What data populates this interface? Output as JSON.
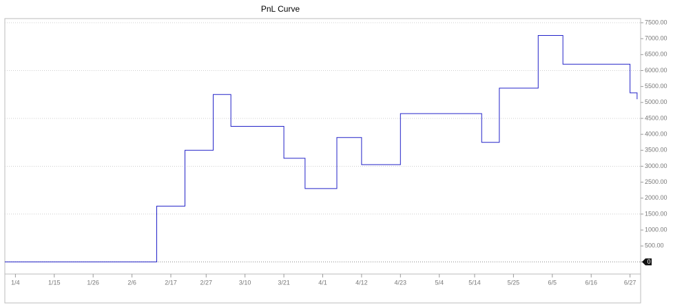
{
  "chart_data": {
    "type": "line",
    "step": true,
    "title": "PnL Curve",
    "x": [
      "1/1",
      "2/13",
      "2/21",
      "3/1",
      "3/6",
      "3/21",
      "3/27",
      "4/5",
      "4/12",
      "4/23",
      "5/16",
      "5/21",
      "6/1",
      "6/8",
      "6/27",
      "6/29"
    ],
    "series": [
      {
        "name": "PnL",
        "color": "#2020c8",
        "values": [
          0,
          1750,
          3500,
          5250,
          4250,
          3250,
          2300,
          3900,
          3050,
          4650,
          3750,
          5450,
          7100,
          6200,
          5300,
          5100
        ]
      }
    ],
    "xlim": [
      "1/1",
      "6/30"
    ],
    "xticks": [
      "1/4",
      "1/15",
      "1/26",
      "2/6",
      "2/17",
      "2/27",
      "3/10",
      "3/21",
      "4/1",
      "4/12",
      "4/23",
      "5/4",
      "5/14",
      "5/25",
      "6/5",
      "6/16",
      "6/27"
    ],
    "ylim": [
      -380,
      7500
    ],
    "yticks": [
      {
        "value": 0,
        "label": "0"
      },
      {
        "value": 500,
        "label": "500.00"
      },
      {
        "value": 1000,
        "label": "1000.00"
      },
      {
        "value": 1500,
        "label": "1500.00"
      },
      {
        "value": 2000,
        "label": "2000.00"
      },
      {
        "value": 2500,
        "label": "2500.00"
      },
      {
        "value": 3000,
        "label": "3000.00"
      },
      {
        "value": 3500,
        "label": "3500.00"
      },
      {
        "value": 4000,
        "label": "4000.00"
      },
      {
        "value": 4500,
        "label": "4500.00"
      },
      {
        "value": 5000,
        "label": "5000.00"
      },
      {
        "value": 5500,
        "label": "5500.00"
      },
      {
        "value": 6000,
        "label": "6000.00"
      },
      {
        "value": 6500,
        "label": "6500.00"
      },
      {
        "value": 7000,
        "label": "7000.00"
      },
      {
        "value": 7500,
        "label": "7500.00"
      }
    ],
    "gridlines": [
      0,
      1500,
      3000,
      4500,
      6000,
      7500
    ],
    "yaxis_side": "right"
  }
}
